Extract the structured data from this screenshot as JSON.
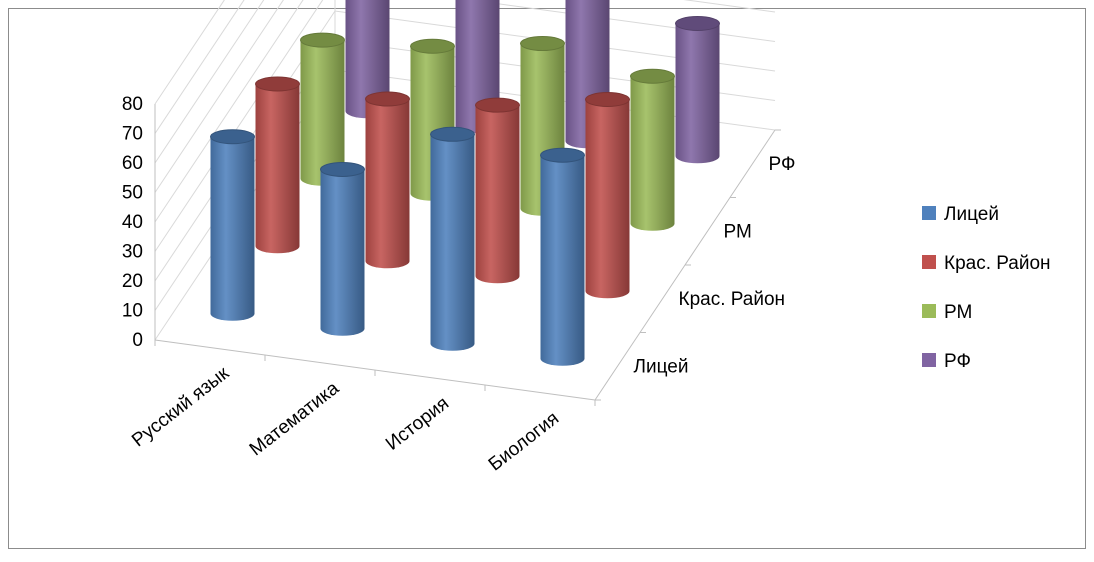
{
  "chart_data": {
    "type": "bar",
    "subtype": "3d-cylinder",
    "title": "",
    "categories": [
      "Русский язык",
      "Математика",
      "История",
      "Биология"
    ],
    "depth_labels": [
      "Лицей",
      "Крас. Район",
      "РМ",
      "РФ"
    ],
    "series": [
      {
        "name": "Лицей",
        "values": [
          60,
          54,
          71,
          69
        ],
        "color": "#4f81bd"
      },
      {
        "name": "Крас. Район",
        "values": [
          55,
          55,
          58,
          65
        ],
        "color": "#c0504d"
      },
      {
        "name": "РМ",
        "values": [
          47,
          50,
          56,
          50
        ],
        "color": "#9bbb59"
      },
      {
        "name": "РФ",
        "values": [
          52,
          51,
          55,
          45
        ],
        "color": "#8064a2"
      }
    ],
    "ylim": [
      0,
      80
    ],
    "yticks": [
      "0",
      "10",
      "20",
      "30",
      "40",
      "50",
      "60",
      "70",
      "80"
    ],
    "legend": "right",
    "grid": true
  }
}
